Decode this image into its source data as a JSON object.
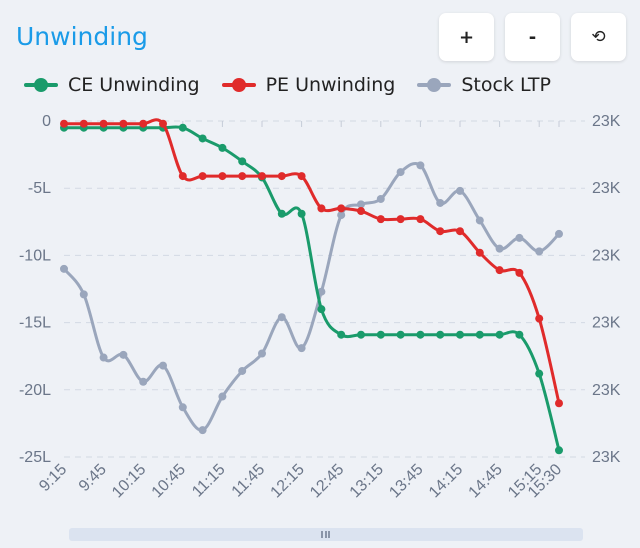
{
  "title": "Unwinding",
  "toolbar": {
    "zoom_in": "+",
    "zoom_out": "-",
    "reset": "⟲"
  },
  "colors": {
    "ce": "#1a9b6b",
    "pe": "#e02b2b",
    "stock": "#9aa6bc",
    "title": "#1a9be8"
  },
  "chart_data": {
    "type": "line",
    "legend_position": "top-left",
    "grid": true,
    "x": [
      "9:15",
      "9:30",
      "9:45",
      "10:00",
      "10:15",
      "10:30",
      "10:45",
      "11:00",
      "11:15",
      "11:30",
      "11:45",
      "12:00",
      "12:15",
      "12:30",
      "12:45",
      "13:00",
      "13:15",
      "13:30",
      "13:45",
      "14:00",
      "14:15",
      "14:30",
      "14:45",
      "15:00",
      "15:15",
      "15:30"
    ],
    "x_tick_labels": [
      "9:15",
      "9:45",
      "10:15",
      "10:45",
      "11:15",
      "11:45",
      "12:15",
      "12:45",
      "13:15",
      "13:45",
      "14:15",
      "14:45",
      "15:15",
      "15:30"
    ],
    "y_left": {
      "ticks": [
        "0",
        "-5L",
        "-10L",
        "-15L",
        "-20L",
        "-25L"
      ],
      "range": [
        -25,
        0
      ]
    },
    "y_right": {
      "ticks": [
        "23K",
        "23K",
        "23K",
        "23K",
        "23K",
        "23K"
      ]
    },
    "series": [
      {
        "name": "CE Unwinding",
        "axis": "left",
        "color": "#1a9b6b",
        "values": [
          -0.5,
          -0.5,
          -0.5,
          -0.5,
          -0.5,
          -0.5,
          -0.5,
          -1.3,
          -2.0,
          -3.0,
          -4.2,
          -6.9,
          -6.9,
          -14.0,
          -15.9,
          -15.9,
          -15.9,
          -15.9,
          -15.9,
          -15.9,
          -15.9,
          -15.9,
          -15.9,
          -15.9,
          -18.8,
          -24.5
        ]
      },
      {
        "name": "PE Unwinding",
        "axis": "left",
        "color": "#e02b2b",
        "values": [
          -0.2,
          -0.2,
          -0.2,
          -0.2,
          -0.2,
          -0.2,
          -4.1,
          -4.1,
          -4.1,
          -4.1,
          -4.1,
          -4.1,
          -4.1,
          -6.5,
          -6.5,
          -6.7,
          -7.3,
          -7.3,
          -7.3,
          -8.2,
          -8.2,
          -9.8,
          -11.1,
          -11.3,
          -14.7,
          -21.0
        ]
      },
      {
        "name": "Stock LTP",
        "axis": "right",
        "color": "#9aa6bc",
        "values": [
          -11.0,
          -12.9,
          -17.6,
          -17.4,
          -19.4,
          -18.2,
          -21.3,
          -23.0,
          -20.5,
          -18.6,
          -17.3,
          -14.6,
          -16.9,
          -12.7,
          -7.0,
          -6.2,
          -5.8,
          -3.8,
          -3.3,
          -6.1,
          -5.2,
          -7.4,
          -9.5,
          -8.7,
          -9.7,
          -8.4
        ]
      }
    ]
  }
}
